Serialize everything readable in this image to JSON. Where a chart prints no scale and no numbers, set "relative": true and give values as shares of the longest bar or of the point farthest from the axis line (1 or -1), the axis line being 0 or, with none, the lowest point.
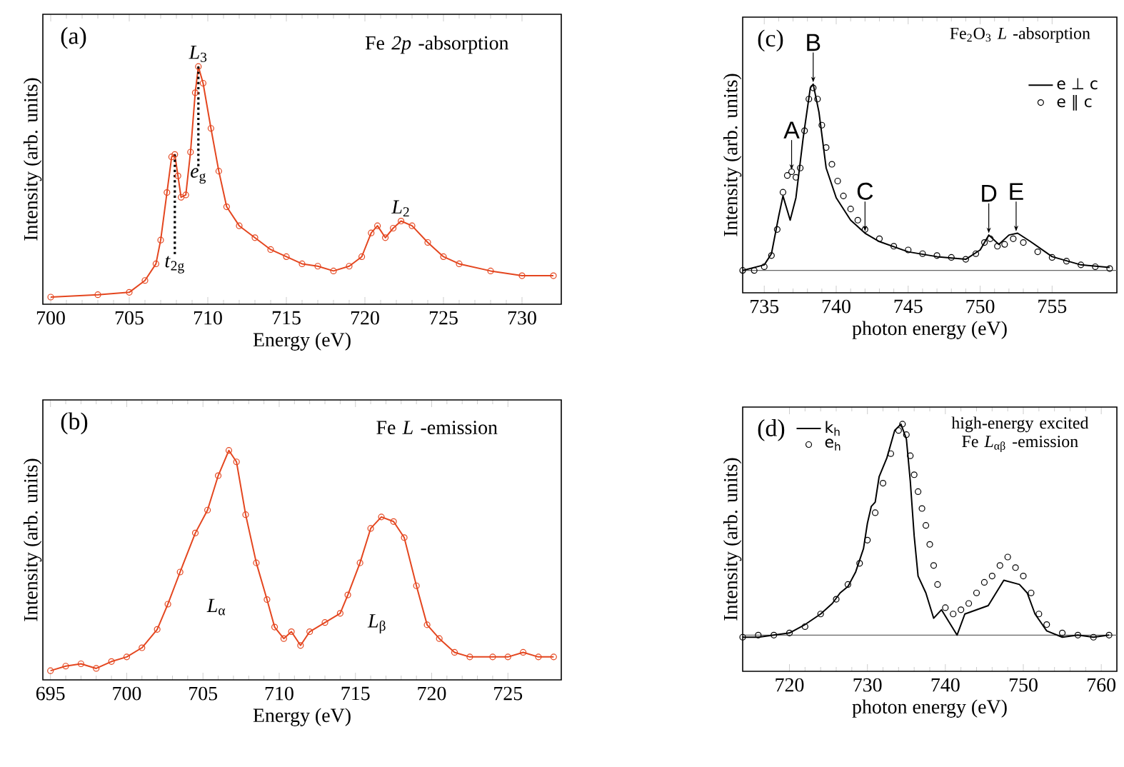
{
  "chart_data": [
    {
      "type": "line",
      "title": "(a)",
      "subtitle": "Fe *2p* -absorption",
      "xlabel": "Energy (eV)",
      "ylabel": "Intensity (arb. units)",
      "relative": true,
      "marker": "circle",
      "xlim": [
        699.5,
        732.5
      ],
      "xticks": [
        700,
        705,
        710,
        715,
        720,
        725,
        730
      ],
      "series": [
        {
          "color": "#e4461f",
          "x": [
            700,
            703,
            705,
            706,
            706.7,
            707,
            707.4,
            707.7,
            707.9,
            708.1,
            708.3,
            708.6,
            708.9,
            709.2,
            709.4,
            709.7,
            710.2,
            710.7,
            711.2,
            712,
            713,
            714,
            715,
            716,
            717,
            718,
            719,
            719.8,
            720.4,
            720.8,
            721.3,
            721.8,
            722.3,
            723,
            724,
            725,
            726,
            728,
            730,
            732
          ],
          "values": [
            0.03,
            0.04,
            0.05,
            0.1,
            0.17,
            0.27,
            0.47,
            0.62,
            0.63,
            0.54,
            0.45,
            0.46,
            0.64,
            0.89,
            1.0,
            0.93,
            0.74,
            0.56,
            0.41,
            0.33,
            0.28,
            0.23,
            0.2,
            0.17,
            0.16,
            0.14,
            0.16,
            0.2,
            0.3,
            0.33,
            0.28,
            0.32,
            0.35,
            0.33,
            0.26,
            0.2,
            0.17,
            0.14,
            0.12,
            0.12
          ]
        }
      ],
      "annotations": [
        {
          "text": "*L*$_{3}$",
          "x": 709.4,
          "y": 1.0
        },
        {
          "text": "*L*$_{2}$",
          "x": 722.3,
          "y": 0.35
        }
      ],
      "ref_lines": [
        {
          "axis": "x",
          "value": 707.9,
          "label": "*t*$_{2g}$",
          "color": "#000000",
          "line_style": "dotted"
        },
        {
          "axis": "x",
          "value": 709.4,
          "label": "*e*$_{g}$",
          "color": "#000000",
          "line_style": "dotted"
        }
      ]
    },
    {
      "type": "line",
      "title": "(b)",
      "subtitle": "Fe *L* -emission",
      "xlabel": "Energy (eV)",
      "ylabel": "Intensity (arb. units)",
      "relative": true,
      "marker": "circle",
      "xlim": [
        694.5,
        728.5
      ],
      "xticks": [
        695,
        700,
        705,
        710,
        715,
        720,
        725
      ],
      "series": [
        {
          "color": "#e4461f",
          "x": [
            695,
            696,
            697,
            698,
            699,
            700,
            701,
            702,
            702.7,
            703.5,
            704.5,
            705.3,
            706,
            706.7,
            707.2,
            707.8,
            708.5,
            709.2,
            709.7,
            710.3,
            710.8,
            711.4,
            712,
            713,
            714,
            714.5,
            715.3,
            716,
            716.7,
            717.5,
            718.2,
            719,
            719.7,
            720.5,
            721.5,
            722.5,
            724,
            725,
            726,
            727,
            728
          ],
          "values": [
            0.04,
            0.06,
            0.07,
            0.05,
            0.08,
            0.1,
            0.14,
            0.22,
            0.33,
            0.47,
            0.64,
            0.74,
            0.89,
            1.0,
            0.95,
            0.72,
            0.51,
            0.35,
            0.23,
            0.18,
            0.21,
            0.15,
            0.21,
            0.25,
            0.29,
            0.37,
            0.51,
            0.66,
            0.71,
            0.69,
            0.62,
            0.41,
            0.24,
            0.18,
            0.12,
            0.1,
            0.1,
            0.1,
            0.12,
            0.1,
            0.1
          ]
        }
      ],
      "annotations": [
        "*L*$_{α}$",
        "*L*$_{β}$"
      ]
    },
    {
      "type": "line",
      "title": "(c)",
      "subtitle": "Fe$_{2}$O$_{3}$ *L* -absorption",
      "xlabel": "photon energy (eV)",
      "ylabel": "Intensity (arb. units)",
      "relative": true,
      "legend": "top right",
      "xlim": [
        733.5,
        759.5
      ],
      "xticks": [
        735,
        740,
        745,
        750,
        755
      ],
      "series": [
        {
          "name": "e ⊥ c",
          "color": "#000000",
          "x": [
            733.5,
            735,
            735.5,
            736,
            736.3,
            736.8,
            737.2,
            737.7,
            738.2,
            738.4,
            738.8,
            739.3,
            740,
            741,
            742,
            743,
            745,
            747,
            749,
            750,
            750.6,
            751.3,
            752,
            752.6,
            753.5,
            755,
            757,
            759
          ],
          "values": [
            0,
            0.03,
            0.09,
            0.29,
            0.4,
            0.27,
            0.39,
            0.71,
            0.98,
            1.0,
            0.85,
            0.55,
            0.39,
            0.27,
            0.2,
            0.155,
            0.1,
            0.074,
            0.06,
            0.11,
            0.19,
            0.14,
            0.19,
            0.2,
            0.155,
            0.074,
            0.03,
            0.016
          ]
        },
        {
          "name": "e ∥ c",
          "type": "scatter",
          "color": "#000000",
          "x": [
            733.5,
            734.3,
            735,
            735.5,
            735.9,
            736.3,
            736.6,
            736.9,
            737.2,
            737.5,
            737.8,
            738.1,
            738.4,
            738.7,
            739.0,
            739.3,
            739.7,
            740.1,
            740.5,
            741,
            741.5,
            742,
            743,
            744,
            745,
            746,
            747,
            748,
            749,
            749.7,
            750.3,
            750.7,
            751.2,
            751.7,
            752.3,
            753,
            754,
            755,
            756,
            757,
            758,
            759
          ],
          "values": [
            0.0,
            0.0,
            0.02,
            0.08,
            0.22,
            0.42,
            0.51,
            0.53,
            0.5,
            0.55,
            0.75,
            0.92,
            0.98,
            0.92,
            0.78,
            0.66,
            0.57,
            0.48,
            0.4,
            0.33,
            0.27,
            0.22,
            0.17,
            0.13,
            0.11,
            0.09,
            0.08,
            0.07,
            0.06,
            0.09,
            0.15,
            0.17,
            0.13,
            0.14,
            0.17,
            0.15,
            0.1,
            0.07,
            0.05,
            0.03,
            0.02,
            0.01
          ]
        }
      ],
      "annotations": [
        {
          "text": "A",
          "x": 736.9,
          "y": 0.53
        },
        {
          "text": "B",
          "x": 738.4,
          "y": 1.0
        },
        {
          "text": "C",
          "x": 742,
          "y": 0.2
        },
        {
          "text": "D",
          "x": 750.6,
          "y": 0.19
        },
        {
          "text": "E",
          "x": 752.5,
          "y": 0.2
        }
      ]
    },
    {
      "type": "line",
      "title": "(d)",
      "subtitle": "high-energy excited Fe *L*$_{αβ}$ -emission",
      "xlabel": "photon energy (eV)",
      "ylabel": "Intensity (arb. units)",
      "relative": true,
      "legend": "top left",
      "xlim": [
        714,
        762
      ],
      "xticks": [
        720,
        730,
        740,
        750,
        760
      ],
      "series": [
        {
          "name": "k$_{h}$",
          "color": "#000000",
          "x": [
            714,
            716,
            718,
            720,
            722,
            724,
            725.5,
            726.5,
            727.5,
            728.5,
            729.5,
            730,
            730.5,
            731,
            731.5,
            732.5,
            733.5,
            734.3,
            735,
            735.5,
            736,
            736.5,
            737.5,
            738.5,
            739.5,
            740.5,
            741.5,
            742.5,
            744,
            745.5,
            746.5,
            747.5,
            748.5,
            749.5,
            750.5,
            751.5,
            753,
            755,
            757,
            759,
            761
          ],
          "values": [
            -0.01,
            -0.01,
            0.0,
            0.01,
            0.05,
            0.1,
            0.15,
            0.2,
            0.23,
            0.3,
            0.41,
            0.53,
            0.61,
            0.63,
            0.75,
            0.84,
            0.97,
            1.0,
            0.93,
            0.73,
            0.47,
            0.28,
            0.2,
            0.08,
            0.12,
            0.06,
            0.0,
            0.1,
            0.12,
            0.14,
            0.2,
            0.26,
            0.25,
            0.24,
            0.2,
            0.1,
            0.02,
            -0.01,
            0.0,
            -0.01,
            0.0
          ]
        },
        {
          "name": "e$_{h}$",
          "type": "scatter",
          "color": "#000000",
          "x": [
            714,
            716,
            718,
            720,
            722,
            724,
            726,
            727.5,
            729,
            730,
            731,
            732,
            733,
            734,
            734.5,
            735,
            735.5,
            736,
            736.5,
            737,
            737.5,
            738,
            738.5,
            739,
            740,
            741,
            742,
            743,
            744,
            745,
            746,
            747,
            748,
            749,
            750,
            751,
            752,
            753,
            755,
            757,
            759,
            761
          ],
          "values": [
            -0.01,
            0.0,
            0.0,
            0.01,
            0.04,
            0.1,
            0.17,
            0.24,
            0.34,
            0.45,
            0.58,
            0.72,
            0.86,
            0.97,
            1.0,
            0.95,
            0.85,
            0.76,
            0.68,
            0.6,
            0.52,
            0.43,
            0.33,
            0.24,
            0.13,
            0.1,
            0.12,
            0.15,
            0.2,
            0.25,
            0.28,
            0.33,
            0.37,
            0.32,
            0.28,
            0.2,
            0.1,
            0.05,
            0.01,
            0.0,
            -0.01,
            0.0
          ]
        }
      ]
    }
  ]
}
